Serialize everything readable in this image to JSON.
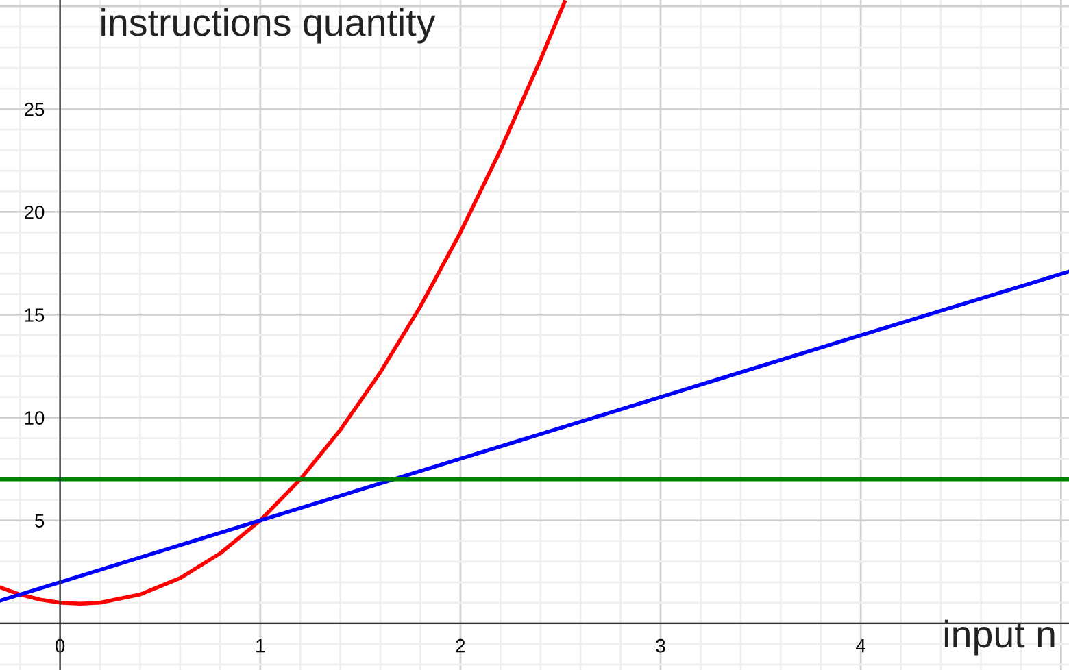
{
  "chart_data": {
    "type": "line",
    "xlabel": "input n",
    "ylabel": "instructions quantity",
    "series": [
      {
        "color": "#ff0000",
        "x": [
          -0.3,
          -0.2,
          -0.1,
          0,
          0.1,
          0.2,
          0.4,
          0.6,
          0.8,
          1.0,
          1.2,
          1.4,
          1.6,
          1.8,
          2.0,
          2.2,
          2.4,
          2.52
        ],
        "values": [
          1.75,
          1.4,
          1.15,
          1,
          0.95,
          1,
          1.4,
          2.2,
          3.4,
          5,
          7,
          9.4,
          12.2,
          15.4,
          19,
          23,
          27.4,
          30.2
        ]
      },
      {
        "color": "#0000ff",
        "x": [
          -0.3,
          0,
          1,
          2,
          3,
          4,
          5.04
        ],
        "values": [
          1.1,
          2,
          5,
          8,
          11,
          14,
          17.1
        ]
      },
      {
        "color": "#008000",
        "x": [
          -0.3,
          5.04
        ],
        "values": [
          7,
          7
        ]
      }
    ],
    "xlim": [
      -0.3,
      5.04
    ],
    "ylim": [
      -2.27,
      30.3
    ],
    "xticks": [
      0,
      1,
      2,
      3,
      4
    ],
    "yticks": [
      5,
      10,
      15,
      20,
      25
    ],
    "grid": true,
    "marker": "none",
    "line_style": "solid"
  }
}
